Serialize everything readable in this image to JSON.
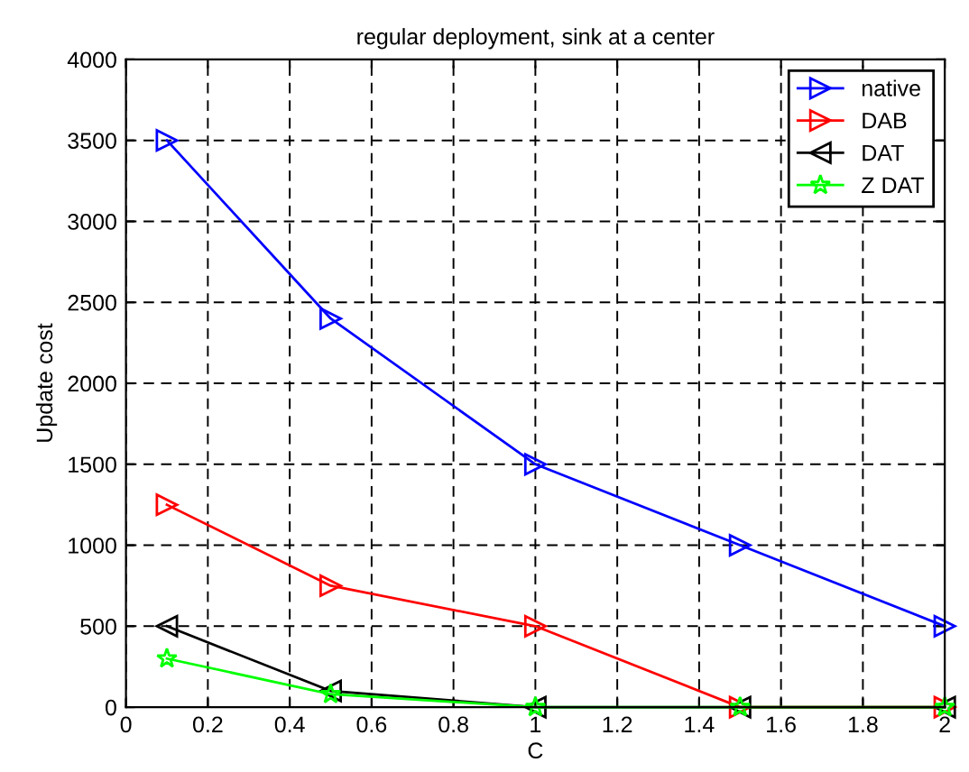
{
  "chart_data": {
    "type": "line",
    "title": "regular deployment, sink at a center",
    "xlabel": "C",
    "ylabel": "Update cost",
    "x": [
      0.1,
      0.5,
      1,
      1.5,
      2
    ],
    "series": [
      {
        "name": "native",
        "color": "#0000ff",
        "marker": "triangle_right",
        "values": [
          3500,
          2400,
          1500,
          1000,
          500
        ]
      },
      {
        "name": "DAB",
        "color": "#ff0000",
        "marker": "triangle_right",
        "values": [
          1250,
          750,
          500,
          0,
          0
        ]
      },
      {
        "name": "DAT",
        "color": "#000000",
        "marker": "triangle_left",
        "values": [
          500,
          100,
          0,
          0,
          0
        ]
      },
      {
        "name": "Z DAT",
        "color": "#00ff00",
        "marker": "star",
        "values": [
          300,
          80,
          0,
          0,
          0
        ]
      }
    ],
    "xlim": [
      0,
      2
    ],
    "xticks": [
      0,
      0.2,
      0.4,
      0.6,
      0.8,
      1,
      1.2,
      1.4,
      1.6,
      1.8,
      2
    ],
    "ylim": [
      0,
      4000
    ],
    "yticks": [
      0,
      500,
      1000,
      1500,
      2000,
      2500,
      3000,
      3500,
      4000
    ],
    "grid": true,
    "legend": "top right",
    "line_style": "solid"
  }
}
